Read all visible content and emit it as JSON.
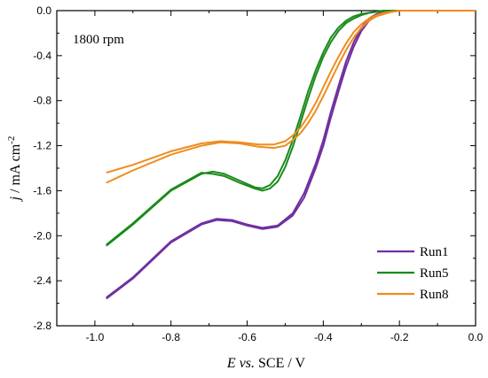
{
  "chart_data": {
    "type": "line",
    "annotation": "1800 rpm",
    "xlabel": {
      "prefix": "E",
      "italic_part": "vs.",
      "suffix": "SCE / V"
    },
    "ylabel": {
      "var": "j",
      "unit_base": "/ mA cm",
      "unit_sup": "-2"
    },
    "xlim": [
      -1.1,
      0.0
    ],
    "ylim": [
      -2.8,
      0.0
    ],
    "xticks": [
      -1.0,
      -0.8,
      -0.6,
      -0.4,
      -0.2,
      0.0
    ],
    "xtick_labels": [
      "-1.0",
      "-0.8",
      "-0.6",
      "-0.4",
      "-0.2",
      "0.0"
    ],
    "yticks": [
      0.0,
      -0.4,
      -0.8,
      -1.2,
      -1.6,
      -2.0,
      -2.4,
      -2.8
    ],
    "ytick_labels": [
      "0.0",
      "-0.4",
      "-0.8",
      "-1.2",
      "-1.6",
      "-2.0",
      "-2.4",
      "-2.8"
    ],
    "grid": false,
    "legend_position": "bottom-right",
    "series": [
      {
        "name": "Run1",
        "color": "#7030a0",
        "x": [
          -0.97,
          -0.9,
          -0.8,
          -0.72,
          -0.68,
          -0.64,
          -0.6,
          -0.56,
          -0.52,
          -0.48,
          -0.45,
          -0.42,
          -0.4,
          -0.38,
          -0.36,
          -0.34,
          -0.32,
          -0.3,
          -0.28,
          -0.26,
          -0.24,
          -0.22,
          -0.2,
          -0.15,
          -0.1,
          0.0
        ],
        "y": [
          -2.56,
          -2.38,
          -2.06,
          -1.9,
          -1.86,
          -1.87,
          -1.91,
          -1.94,
          -1.92,
          -1.82,
          -1.66,
          -1.4,
          -1.2,
          -0.95,
          -0.72,
          -0.5,
          -0.32,
          -0.18,
          -0.09,
          -0.04,
          -0.02,
          -0.01,
          0.0,
          0.0,
          0.0,
          0.0
        ],
        "y2": [
          -2.55,
          -2.37,
          -2.05,
          -1.89,
          -1.85,
          -1.86,
          -1.9,
          -1.93,
          -1.91,
          -1.8,
          -1.62,
          -1.36,
          -1.15,
          -0.9,
          -0.67,
          -0.45,
          -0.28,
          -0.15,
          -0.07,
          -0.03,
          -0.01,
          -0.01,
          0.0,
          0.0,
          0.0,
          0.0
        ]
      },
      {
        "name": "Run5",
        "color": "#1a8a1a",
        "x": [
          -0.97,
          -0.9,
          -0.8,
          -0.72,
          -0.69,
          -0.66,
          -0.62,
          -0.58,
          -0.56,
          -0.54,
          -0.52,
          -0.5,
          -0.48,
          -0.46,
          -0.44,
          -0.42,
          -0.4,
          -0.38,
          -0.36,
          -0.34,
          -0.32,
          -0.3,
          -0.28,
          -0.26,
          -0.24,
          -0.2,
          -0.1,
          0.0
        ],
        "y": [
          -2.09,
          -1.9,
          -1.6,
          -1.45,
          -1.43,
          -1.45,
          -1.51,
          -1.57,
          -1.58,
          -1.55,
          -1.47,
          -1.33,
          -1.15,
          -0.94,
          -0.72,
          -0.53,
          -0.37,
          -0.24,
          -0.15,
          -0.09,
          -0.05,
          -0.03,
          -0.02,
          -0.01,
          0.0,
          0.0,
          0.0,
          0.0
        ],
        "y2": [
          -2.08,
          -1.89,
          -1.59,
          -1.44,
          -1.45,
          -1.47,
          -1.53,
          -1.58,
          -1.6,
          -1.58,
          -1.52,
          -1.39,
          -1.21,
          -1.0,
          -0.78,
          -0.58,
          -0.41,
          -0.28,
          -0.18,
          -0.11,
          -0.07,
          -0.04,
          -0.02,
          -0.01,
          0.0,
          0.0,
          0.0,
          0.0
        ]
      },
      {
        "name": "Run8",
        "color": "#f08c1e",
        "x": [
          -0.97,
          -0.9,
          -0.8,
          -0.72,
          -0.67,
          -0.62,
          -0.57,
          -0.53,
          -0.5,
          -0.48,
          -0.46,
          -0.44,
          -0.42,
          -0.4,
          -0.38,
          -0.36,
          -0.34,
          -0.32,
          -0.3,
          -0.28,
          -0.26,
          -0.24,
          -0.22,
          -0.2,
          -0.1,
          0.0
        ],
        "y": [
          -1.44,
          -1.37,
          -1.25,
          -1.18,
          -1.16,
          -1.17,
          -1.19,
          -1.19,
          -1.16,
          -1.11,
          -1.04,
          -0.94,
          -0.82,
          -0.68,
          -0.54,
          -0.41,
          -0.29,
          -0.19,
          -0.12,
          -0.07,
          -0.04,
          -0.02,
          -0.01,
          0.0,
          0.0,
          0.0
        ],
        "y2": [
          -1.53,
          -1.42,
          -1.28,
          -1.2,
          -1.17,
          -1.18,
          -1.21,
          -1.22,
          -1.2,
          -1.15,
          -1.09,
          -1.0,
          -0.89,
          -0.76,
          -0.62,
          -0.48,
          -0.35,
          -0.24,
          -0.15,
          -0.09,
          -0.05,
          -0.03,
          -0.01,
          0.0,
          0.0,
          0.0
        ]
      }
    ]
  }
}
